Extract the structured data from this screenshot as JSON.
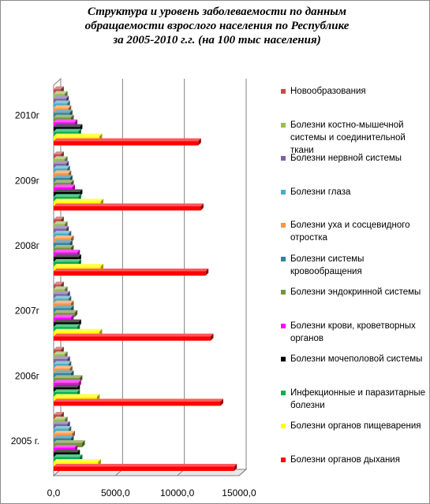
{
  "chart_data": {
    "type": "bar",
    "orientation": "horizontal",
    "three_d": true,
    "title_lines": [
      "Структура и уровень заболеваемости по данным",
      "обращаемости взрослого населения по Республике",
      "за 2005-2010 г.г.  (на 100 тыс населения)"
    ],
    "categories": [
      "2005 г.",
      "2006г",
      "2007г",
      "2008г",
      "2009г",
      "2010г"
    ],
    "x_ticks": [
      "0,0",
      "5000,0",
      "10000,0",
      "15000,0"
    ],
    "xlim": [
      0,
      15000
    ],
    "grid": true,
    "legend_position": "right",
    "series": [
      {
        "name": "Болезни органов дыхания",
        "color": "#ff0000",
        "values": [
          14600,
          13500,
          12700,
          12300,
          11900,
          11700
        ]
      },
      {
        "name": "Болезни органов пищеварения",
        "color": "#ffff00",
        "values": [
          3600,
          3500,
          3700,
          3800,
          3800,
          3700
        ]
      },
      {
        "name": "Инфекционные и паразитарные болезни",
        "color": "#00b050",
        "values": [
          2100,
          1900,
          1900,
          2000,
          2000,
          2000
        ]
      },
      {
        "name": "Болезни мочеполовой системы",
        "color": "#000000",
        "values": [
          1900,
          1900,
          2000,
          2000,
          2100,
          2100
        ]
      },
      {
        "name": "Болезни крови, кроветворных органов",
        "color": "#ff00ff",
        "values": [
          1700,
          2000,
          1400,
          1900,
          1500,
          1700
        ]
      },
      {
        "name": "Болезни эндокринной системы",
        "color": "#77933c",
        "values": [
          2300,
          2100,
          1700,
          1400,
          1400,
          1400
        ]
      },
      {
        "name": "Болезни системы кровообращения",
        "color": "#31849b",
        "values": [
          1400,
          1400,
          1400,
          1300,
          1300,
          1300
        ]
      },
      {
        "name": "Болезни уха и сосцевидного отростка",
        "color": "#f79646",
        "values": [
          1500,
          1300,
          1400,
          1400,
          1200,
          1200
        ]
      },
      {
        "name": "Болезни глаза",
        "color": "#4bacc6",
        "values": [
          1200,
          1200,
          1200,
          1200,
          1100,
          1100
        ]
      },
      {
        "name": "Болезни нервной системы",
        "color": "#8064a2",
        "values": [
          1100,
          1100,
          1100,
          1000,
          1000,
          1000
        ]
      },
      {
        "name": "Болезни костно-мышечной системы и соединительной ткани",
        "color": "#9bbb59",
        "values": [
          900,
          900,
          900,
          900,
          900,
          900
        ]
      },
      {
        "name": "Новообразования",
        "color": "#c0504d",
        "values": [
          600,
          600,
          600,
          600,
          600,
          600
        ]
      }
    ]
  }
}
